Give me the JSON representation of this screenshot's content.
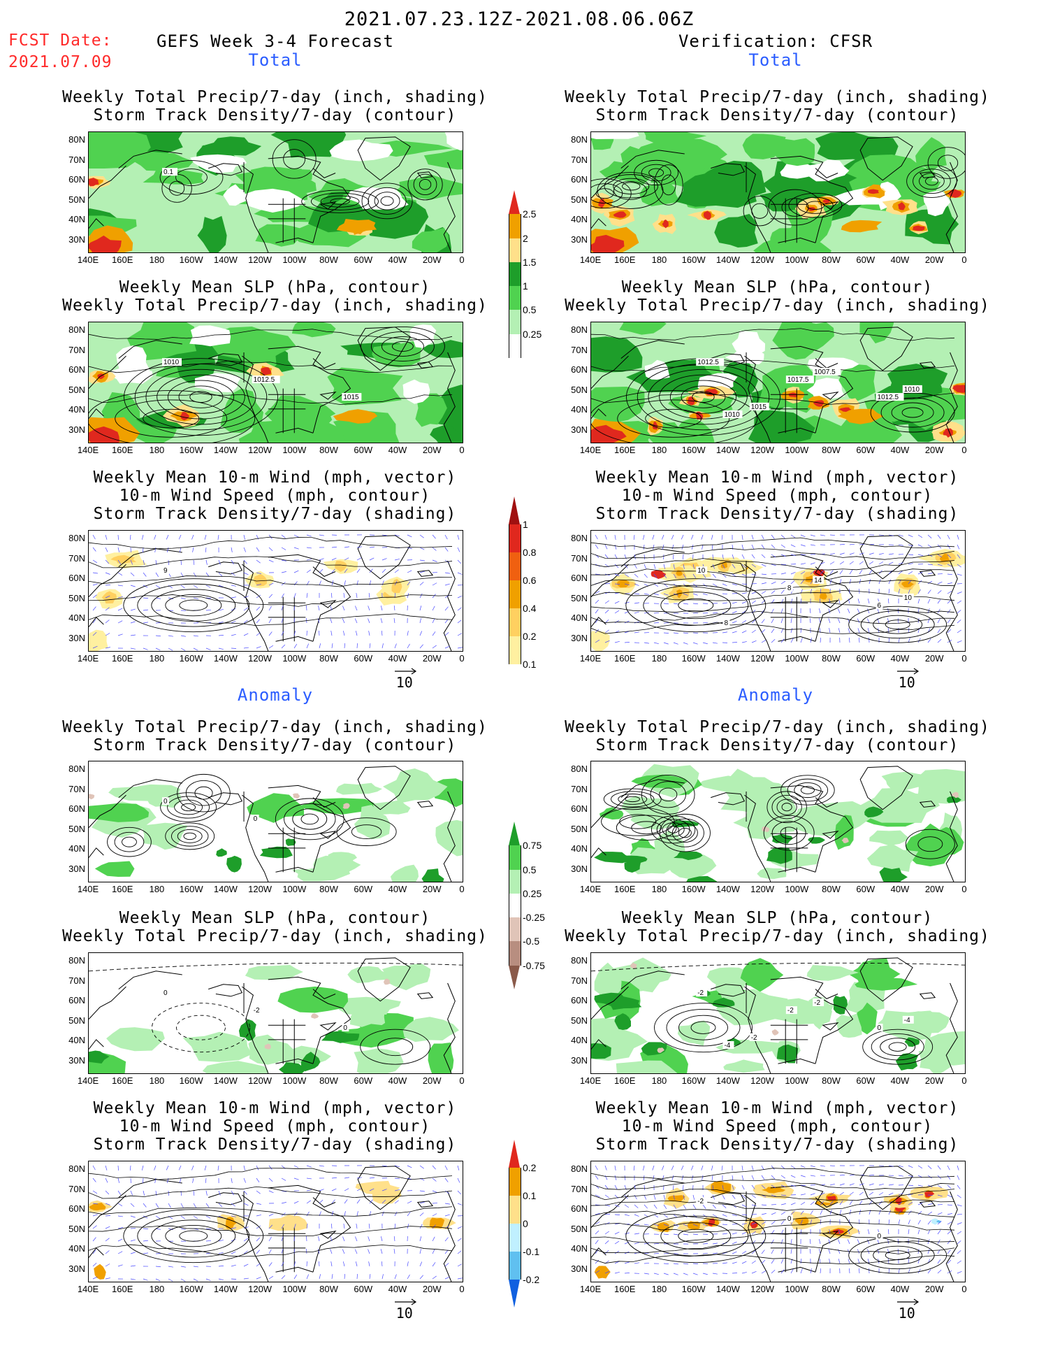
{
  "header": {
    "period": "2021.07.23.12Z-2021.08.06.06Z",
    "fcst_label": "FCST Date:",
    "fcst_date": "2021.07.09",
    "forecast_title": "GEFS Week 3-4 Forecast",
    "verification_title": "Verification: CFSR"
  },
  "sections": {
    "total": "Total",
    "anomaly": "Anomaly"
  },
  "panel_titles": {
    "precip_storm": [
      "Weekly Total Precip/7-day (inch, shading)",
      "Storm Track Density/7-day (contour)"
    ],
    "slp_precip": [
      "Weekly Mean SLP (hPa, contour)",
      "Weekly Total Precip/7-day (inch, shading)"
    ],
    "wind": [
      "Weekly Mean 10-m Wind (mph, vector)",
      "10-m Wind Speed (mph, contour)",
      "Storm Track Density/7-day (shading)"
    ]
  },
  "axes": {
    "lat_labels": [
      "80N",
      "70N",
      "60N",
      "50N",
      "40N",
      "30N"
    ],
    "lon_labels": [
      "140E",
      "160E",
      "180",
      "160W",
      "140W",
      "120W",
      "100W",
      "80W",
      "60W",
      "40W",
      "20W",
      "0"
    ]
  },
  "vector_ref": "10",
  "colorbars": {
    "precip_total": {
      "labels": [
        "2.5",
        "2",
        "1.5",
        "1",
        "0.5",
        "0.25"
      ],
      "colors": [
        "#e0281e",
        "#f0a000",
        "#ffe08a",
        "#1e9e2a",
        "#50d250",
        "#b4f0b4",
        "#ffffff"
      ]
    },
    "storm_total": {
      "labels": [
        "1",
        "0.8",
        "0.6",
        "0.4",
        "0.2",
        "0.1"
      ],
      "colors": [
        "#a01010",
        "#e0281e",
        "#f06010",
        "#f0a000",
        "#ffd060",
        "#fff0a0",
        "#ffffff"
      ]
    },
    "precip_anom": {
      "labels": [
        "0.75",
        "0.5",
        "0.25",
        "-0.25",
        "-0.5",
        "-0.75"
      ],
      "colors": [
        "#1e9e2a",
        "#50d250",
        "#b4f0b4",
        "#ffffff",
        "#e0c4b8",
        "#b88e80",
        "#8a5a4a"
      ]
    },
    "storm_anom": {
      "labels": [
        "0.2",
        "0.1",
        "0",
        "-0.1",
        "-0.2"
      ],
      "colors": [
        "#e0281e",
        "#f0a000",
        "#ffe08a",
        "#c0f0ff",
        "#60c0f0",
        "#1060e0"
      ]
    }
  },
  "contour_labels": {
    "fc_precip": [
      "0.1"
    ],
    "fc_slp": [
      "1010",
      "1012.5",
      "1015"
    ],
    "fc_wind": [
      "9"
    ],
    "vf_slp": [
      "1012.5",
      "1017.5",
      "1012.5",
      "1010",
      "1007.5",
      "1010",
      "1015"
    ],
    "vf_wind": [
      "10",
      "8",
      "6",
      "8",
      "14",
      "10"
    ],
    "fa_precip": [
      "0",
      "0"
    ],
    "fa_slp": [
      "0",
      "-2",
      "0"
    ],
    "va_slp": [
      "-2",
      "-2",
      "0",
      "-4",
      "-2",
      "-4",
      "-2"
    ],
    "va_wind": [
      "-2",
      "0",
      "0"
    ]
  }
}
